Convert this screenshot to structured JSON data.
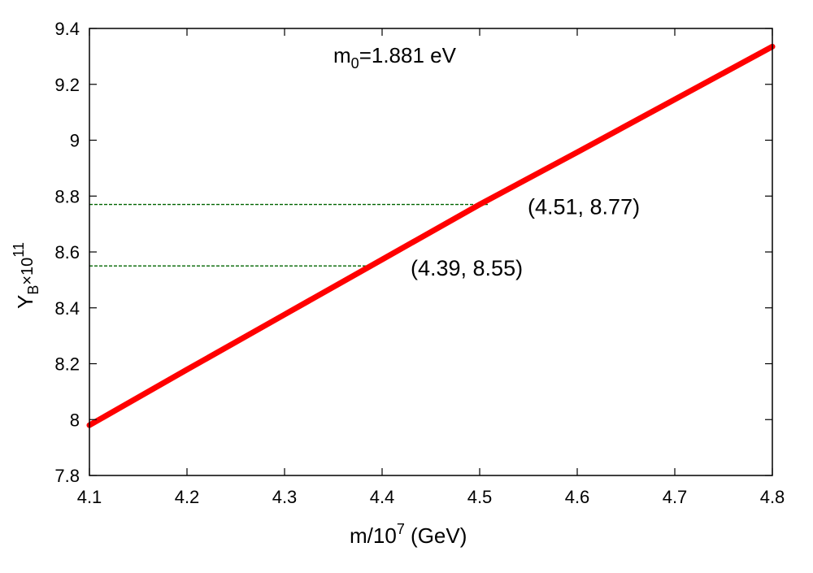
{
  "chart_data": {
    "type": "line",
    "xlabel_main": "m/10",
    "xlabel_exp": "7",
    "xlabel_unit": " (GeV)",
    "ylabel_main": "Y",
    "ylabel_sub": "B",
    "ylabel_mid": "×10",
    "ylabel_exp": "11",
    "xlim": [
      4.1,
      4.8
    ],
    "ylim": [
      7.8,
      9.4
    ],
    "x_ticks": [
      "4.1",
      "4.2",
      "4.3",
      "4.4",
      "4.5",
      "4.6",
      "4.7",
      "4.8"
    ],
    "y_ticks": [
      "7.8",
      "8",
      "8.2",
      "8.4",
      "8.6",
      "8.8",
      "9",
      "9.2",
      "9.4"
    ],
    "grid": false,
    "note": {
      "prefix": "m",
      "sub": "0",
      "suffix": "=1.881 eV"
    },
    "series": [
      {
        "color": "#ff0000",
        "x": [
          4.1,
          4.2,
          4.3,
          4.4,
          4.5,
          4.6,
          4.7,
          4.8
        ],
        "y": [
          7.98,
          8.179,
          8.376,
          8.573,
          8.77,
          8.957,
          9.146,
          9.335
        ]
      }
    ],
    "reference_lines": [
      {
        "x": 4.51,
        "y": 8.77,
        "color": "#006400"
      },
      {
        "x": 4.39,
        "y": 8.55,
        "color": "#006400"
      }
    ],
    "annotations": [
      {
        "text": "(4.51, 8.77)",
        "x": 4.51,
        "y": 8.77
      },
      {
        "text": "(4.39, 8.55)",
        "x": 4.39,
        "y": 8.55
      }
    ]
  }
}
